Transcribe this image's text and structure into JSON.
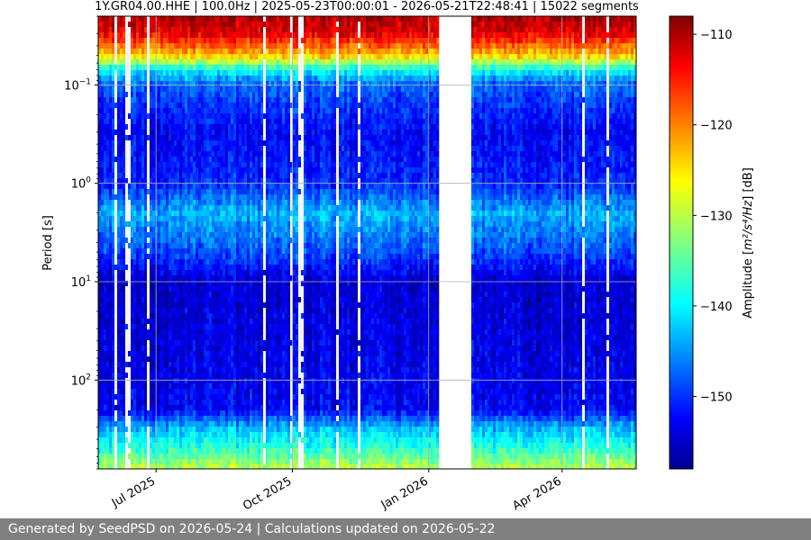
{
  "chart_data": {
    "type": "heatmap",
    "title": "1Y.GR04.00.HHE | 100.0Hz | 2025-05-23T00:00:01 - 2026-05-21T22:48:41 | 15022 segments",
    "xlabel": "",
    "ylabel": "Period [s]",
    "x_range": [
      "2025-05-23",
      "2026-05-21"
    ],
    "x_ticks": [
      {
        "label": "Jul 2025",
        "date": "2025-07-01"
      },
      {
        "label": "Oct 2025",
        "date": "2025-10-01"
      },
      {
        "label": "Jan 2026",
        "date": "2026-01-01"
      },
      {
        "label": "Apr 2026",
        "date": "2026-04-01"
      }
    ],
    "y_scale": "log",
    "y_inverted": true,
    "y_range": [
      0.02,
      800
    ],
    "y_ticks": [
      {
        "base": "10",
        "exp": "−1",
        "value": 0.1
      },
      {
        "base": "10",
        "exp": "0",
        "value": 1
      },
      {
        "base": "10",
        "exp": "1",
        "value": 10
      },
      {
        "base": "10",
        "exp": "2",
        "value": 100
      }
    ],
    "colorbar": {
      "colormap": "jet",
      "range": [
        -158,
        -108
      ],
      "ticks": [
        "−110",
        "−120",
        "−130",
        "−140",
        "−150"
      ],
      "tick_values": [
        -110,
        -120,
        -130,
        -140,
        -150
      ],
      "label_main": "Amplitude [",
      "label_units": "m²/s⁴/Hz",
      "label_close": "] [dB]"
    },
    "profile_db": [
      {
        "period": 0.02,
        "db": -110
      },
      {
        "period": 0.03,
        "db": -113
      },
      {
        "period": 0.05,
        "db": -124
      },
      {
        "period": 0.07,
        "db": -139
      },
      {
        "period": 0.1,
        "db": -147
      },
      {
        "period": 0.3,
        "db": -152
      },
      {
        "period": 1,
        "db": -150
      },
      {
        "period": 2,
        "db": -143
      },
      {
        "period": 5,
        "db": -148
      },
      {
        "period": 10,
        "db": -154
      },
      {
        "period": 50,
        "db": -153
      },
      {
        "period": 200,
        "db": -152
      },
      {
        "period": 300,
        "db": -143
      },
      {
        "period": 500,
        "db": -137
      },
      {
        "period": 800,
        "db": -130
      }
    ],
    "gaps": [
      [
        "2026-01-07",
        "2026-01-11"
      ],
      [
        "2026-01-13",
        "2026-01-20"
      ],
      [
        "2026-01-22",
        "2026-01-24"
      ],
      [
        "2026-01-26",
        "2026-01-28"
      ]
    ],
    "grid": true
  },
  "footer": "Generated by SeedPSD on 2026-05-24 | Calculations updated on 2026-05-22"
}
